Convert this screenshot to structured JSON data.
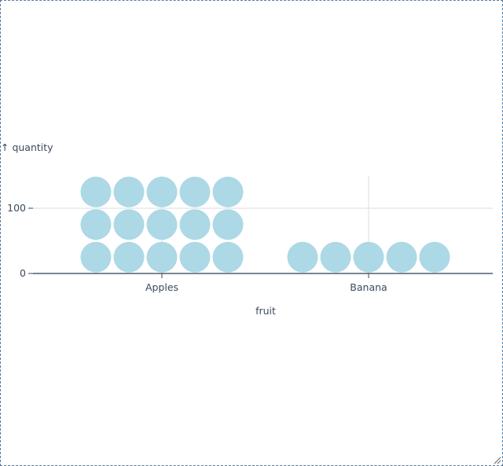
{
  "chart_data": {
    "type": "waffle",
    "categories": [
      "Apples",
      "Banana"
    ],
    "values": [
      150,
      50
    ],
    "unit": 10,
    "xlabel": "fruit",
    "ylabel": "↑ quantity",
    "y_ticks": [
      0,
      100
    ],
    "ylim": [
      0,
      150
    ],
    "grid": true,
    "color": "#add8e6"
  }
}
